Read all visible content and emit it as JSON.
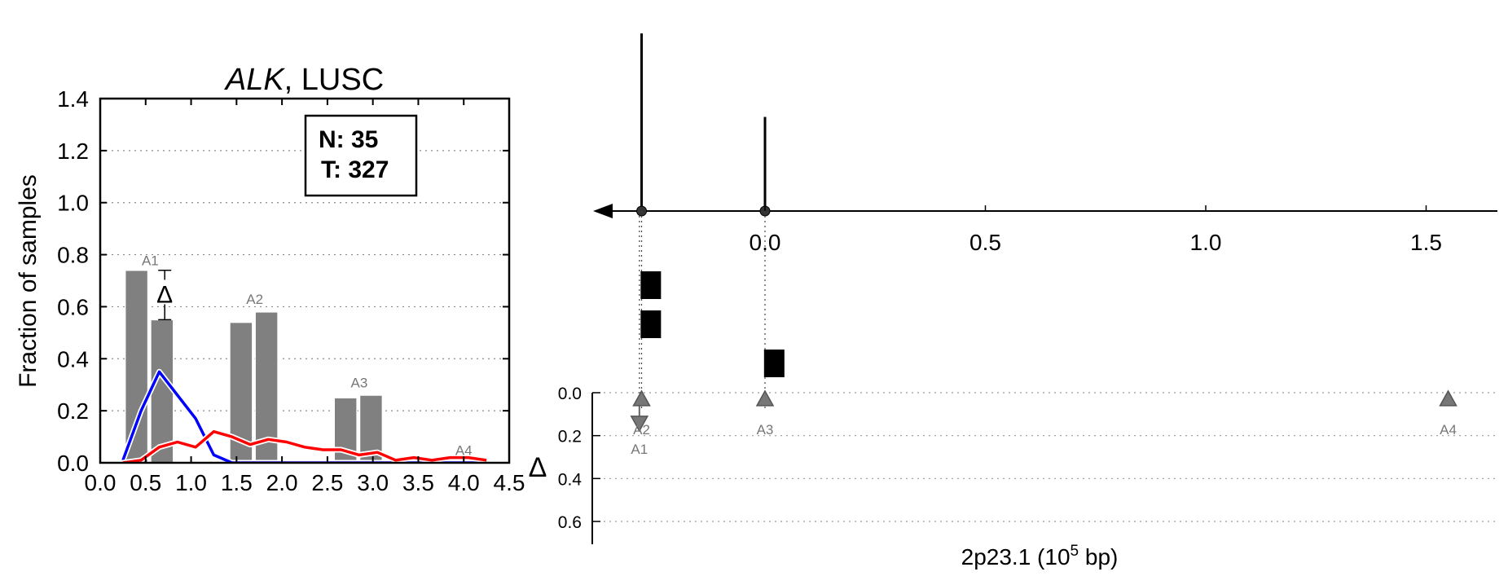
{
  "chart_data": [
    {
      "type": "bar",
      "title_gene": "ALK",
      "title_rest": ", LUSC",
      "ylabel": "Fraction of samples",
      "xlim": [
        0.0,
        4.5
      ],
      "ylim": [
        0.0,
        1.4
      ],
      "xticks": [
        "0.0",
        "0.5",
        "1.0",
        "1.5",
        "2.0",
        "2.5",
        "3.0",
        "3.5",
        "4.0",
        "4.5"
      ],
      "yticks": [
        "0.0",
        "0.2",
        "0.4",
        "0.6",
        "0.8",
        "1.0",
        "1.2",
        "1.4"
      ],
      "grid": "horizontal dotted",
      "legend_box": {
        "normal": "N: 35",
        "tumor": "T: 327"
      },
      "colors": {
        "bar": "#808080",
        "normal_line": "#0000ff",
        "tumor_line": "#ff0000"
      },
      "bars": [
        {
          "x": 0.4,
          "value": 0.74
        },
        {
          "x": 0.68,
          "value": 0.55
        },
        {
          "x": 1.55,
          "value": 0.54
        },
        {
          "x": 1.83,
          "value": 0.58
        },
        {
          "x": 2.7,
          "value": 0.25
        },
        {
          "x": 2.98,
          "value": 0.26
        }
      ],
      "bar_width": 0.25,
      "bar_labels": [
        {
          "label": "A1",
          "x": 0.55,
          "y": 0.76
        },
        {
          "label": "A2",
          "x": 1.7,
          "y": 0.61
        },
        {
          "label": "A3",
          "x": 2.85,
          "y": 0.29
        },
        {
          "label": "A4",
          "x": 4.0,
          "y": 0.03
        }
      ],
      "delta_marker": {
        "label": "Δ",
        "x": 0.71,
        "y": 0.65,
        "err_low": 0.55,
        "err_high": 0.74
      },
      "series": [
        {
          "name": "Normal",
          "color": "#0000ff",
          "x": [
            0.25,
            0.45,
            0.65,
            0.85,
            1.05,
            1.25,
            1.45,
            1.65,
            1.85,
            2.05,
            2.25,
            2.45,
            2.65,
            2.85,
            3.05,
            3.25,
            3.45,
            3.65,
            3.85,
            4.05,
            4.25
          ],
          "y": [
            0.01,
            0.2,
            0.35,
            0.26,
            0.17,
            0.03,
            0.0,
            0.0,
            0.0,
            0.0,
            0.0,
            0.0,
            0.0,
            0.0,
            0.0,
            0.0,
            0.0,
            0.0,
            0.0,
            0.0,
            0.0
          ]
        },
        {
          "name": "Tumor",
          "color": "#ff0000",
          "x": [
            0.25,
            0.45,
            0.65,
            0.85,
            1.05,
            1.25,
            1.45,
            1.65,
            1.85,
            2.05,
            2.25,
            2.45,
            2.65,
            2.85,
            3.05,
            3.25,
            3.45,
            3.65,
            3.85,
            4.05,
            4.25
          ],
          "y": [
            0.0,
            0.01,
            0.06,
            0.08,
            0.06,
            0.12,
            0.1,
            0.07,
            0.09,
            0.08,
            0.06,
            0.05,
            0.05,
            0.03,
            0.04,
            0.01,
            0.02,
            0.01,
            0.02,
            0.02,
            0.01
          ]
        }
      ]
    },
    {
      "type": "scatter",
      "xlabel_base": "2p23.1 (10",
      "xlabel_exp": "5",
      "xlabel_tail": " bp)",
      "xlim": [
        -0.38,
        1.65
      ],
      "xticks": [
        "0.0",
        "0.5",
        "1.0",
        "1.5"
      ],
      "xtick_values": [
        0.0,
        0.5,
        1.0,
        1.5
      ],
      "delta_label": "Δ",
      "delta_axis_ticks": [
        "0.0",
        "0.2",
        "0.4",
        "0.6"
      ],
      "delta_axis_values": [
        0.0,
        0.2,
        0.4,
        0.6
      ],
      "delta_axis_range": [
        -0.02,
        0.7
      ],
      "stems": [
        {
          "x": -0.28,
          "height": 1.0
        },
        {
          "x": 0.0,
          "height": 0.53
        }
      ],
      "exon_blocks": [
        {
          "x": -0.26,
          "row": 0
        },
        {
          "x": -0.26,
          "row": 1
        },
        {
          "x": 0.02,
          "row": 2
        }
      ],
      "delta_points": [
        {
          "label": "A1",
          "x": -0.285,
          "delta": 0.14,
          "marker": "down"
        },
        {
          "label": "A2",
          "x": -0.28,
          "delta": 0.03,
          "marker": "up"
        },
        {
          "label": "A3",
          "x": 0.0,
          "delta": 0.03,
          "marker": "up"
        },
        {
          "label": "A4",
          "x": 1.55,
          "delta": 0.03,
          "marker": "up"
        }
      ]
    }
  ]
}
